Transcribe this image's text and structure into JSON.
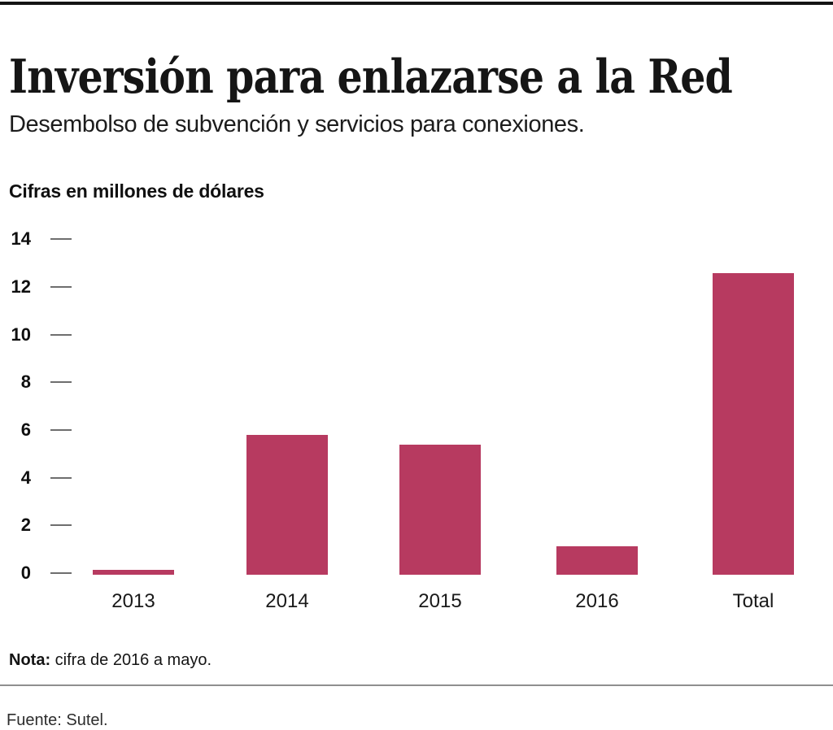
{
  "header": {
    "title": "Inversión para enlazarse a la Red",
    "subtitle": "Desembolso de subvención y servicios para conexiones.",
    "units_label": "Cifras en millones de dólares"
  },
  "footer": {
    "note_label": "Nota:",
    "note_text": "cifra de 2016 a mayo.",
    "source": "Fuente: Sutel."
  },
  "colors": {
    "bar": "#b73a60",
    "top_rule": "#141414",
    "divider": "#8f8f8f",
    "tick_dash": "#6e6e6e"
  },
  "chart_data": {
    "type": "bar",
    "title": "Inversión para enlazarse a la Red",
    "subtitle": "Desembolso de subvención y servicios para conexiones.",
    "units": "millones de dólares",
    "categories": [
      "2013",
      "2014",
      "2015",
      "2016",
      "Total"
    ],
    "values": [
      0.2,
      5.85,
      5.45,
      1.2,
      12.65
    ],
    "xlabel": "",
    "ylabel": "Cifras en millones de dólares",
    "ylim": [
      0,
      14
    ],
    "yticks": [
      0,
      2,
      4,
      6,
      8,
      10,
      12,
      14
    ],
    "grid": false,
    "legend": false,
    "bar_color": "#b73a60",
    "note": "Nota: cifra de 2016 a mayo.",
    "source": "Fuente: Sutel."
  }
}
